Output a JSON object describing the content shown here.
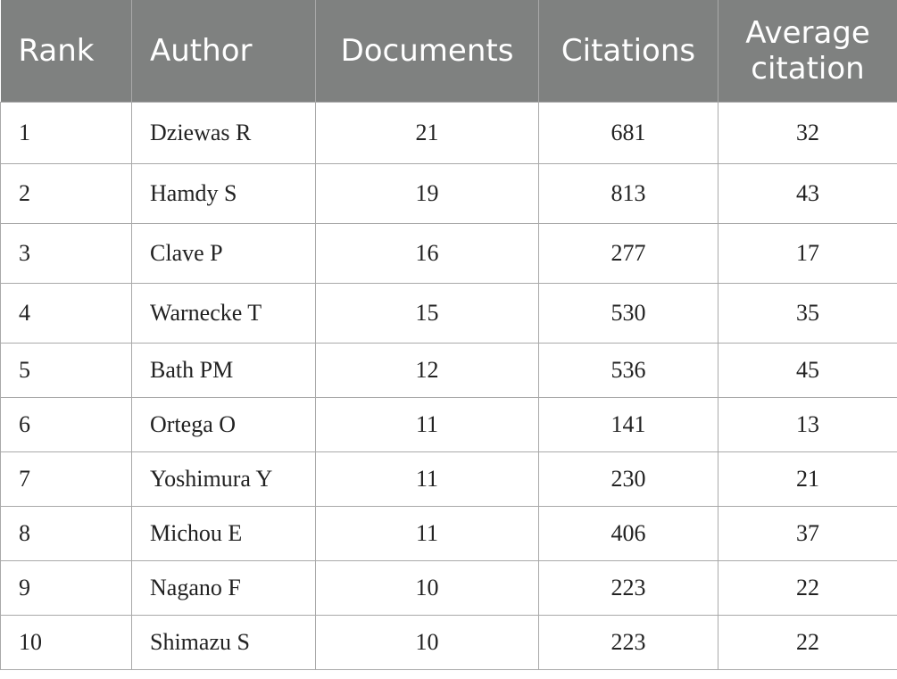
{
  "table": {
    "headers": {
      "rank": "Rank",
      "author": "Author",
      "documents": "Documents",
      "citations": "Citations",
      "average_citation": "Average citation"
    },
    "rows": [
      {
        "rank": "1",
        "author": "Dziewas R",
        "documents": "21",
        "citations": "681",
        "average_citation": "32"
      },
      {
        "rank": "2",
        "author": "Hamdy S",
        "documents": "19",
        "citations": "813",
        "average_citation": "43"
      },
      {
        "rank": "3",
        "author": "Clave P",
        "documents": "16",
        "citations": "277",
        "average_citation": "17"
      },
      {
        "rank": "4",
        "author": "Warnecke T",
        "documents": "15",
        "citations": "530",
        "average_citation": "35"
      },
      {
        "rank": "5",
        "author": "Bath PM",
        "documents": "12",
        "citations": "536",
        "average_citation": "45"
      },
      {
        "rank": "6",
        "author": "Ortega O",
        "documents": "11",
        "citations": "141",
        "average_citation": "13"
      },
      {
        "rank": "7",
        "author": "Yoshimura Y",
        "documents": "11",
        "citations": "230",
        "average_citation": "21"
      },
      {
        "rank": "8",
        "author": "Michou E",
        "documents": "11",
        "citations": "406",
        "average_citation": "37"
      },
      {
        "rank": "9",
        "author": "Nagano F",
        "documents": "10",
        "citations": "223",
        "average_citation": "22"
      },
      {
        "rank": "10",
        "author": "Shimazu S",
        "documents": "10",
        "citations": "223",
        "average_citation": "22"
      }
    ]
  }
}
